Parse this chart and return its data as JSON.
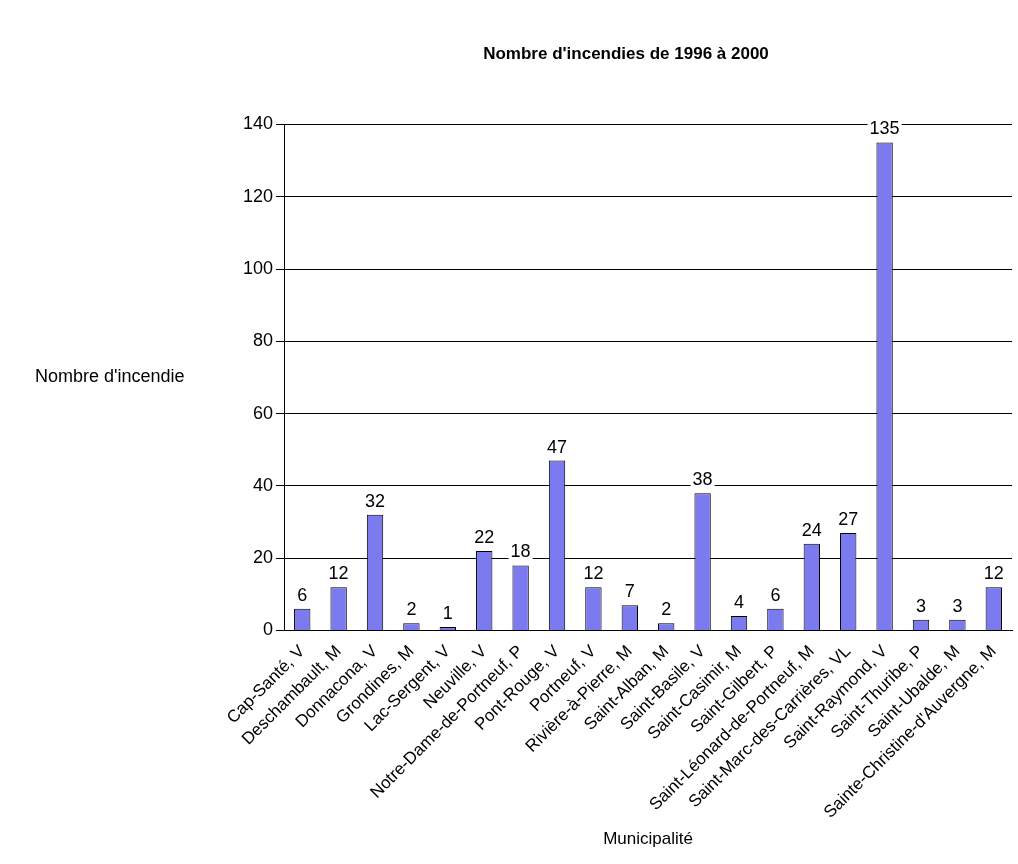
{
  "chart_data": {
    "type": "bar",
    "title": "Nombre d'incendies de 1996 à 2000",
    "xlabel": "Municipalité",
    "ylabel": "Nombre d'incendie",
    "categories": [
      "Cap-Santé, V",
      "Deschambault, M",
      "Donnacona, V",
      "Grondines, M",
      "Lac-Sergent, V",
      "Neuville, V",
      "Notre-Dame-de-Portneuf, P",
      "Pont-Rouge, V",
      "Portneuf, V",
      "Rivière-à-Pierre, M",
      "Saint-Alban, M",
      "Saint-Basile, V",
      "Saint-Casimir, M",
      "Saint-Gilbert, P",
      "Saint-Léonard-de-Portneuf, M",
      "Saint-Marc-des-Carrières, VL",
      "Saint-Raymond, V",
      "Saint-Thuribe, P",
      "Saint-Ubalde, M",
      "Sainte-Christine-d'Auvergne, M"
    ],
    "values": [
      6,
      12,
      32,
      2,
      1,
      22,
      18,
      47,
      12,
      7,
      2,
      38,
      4,
      6,
      24,
      27,
      135,
      3,
      3,
      12
    ],
    "color": "#7b7bef",
    "ylim": [
      0,
      140
    ],
    "yticks": [
      0,
      20,
      40,
      60,
      80,
      100,
      120,
      140
    ],
    "grid": "y",
    "legend": false,
    "data_labels": true
  }
}
